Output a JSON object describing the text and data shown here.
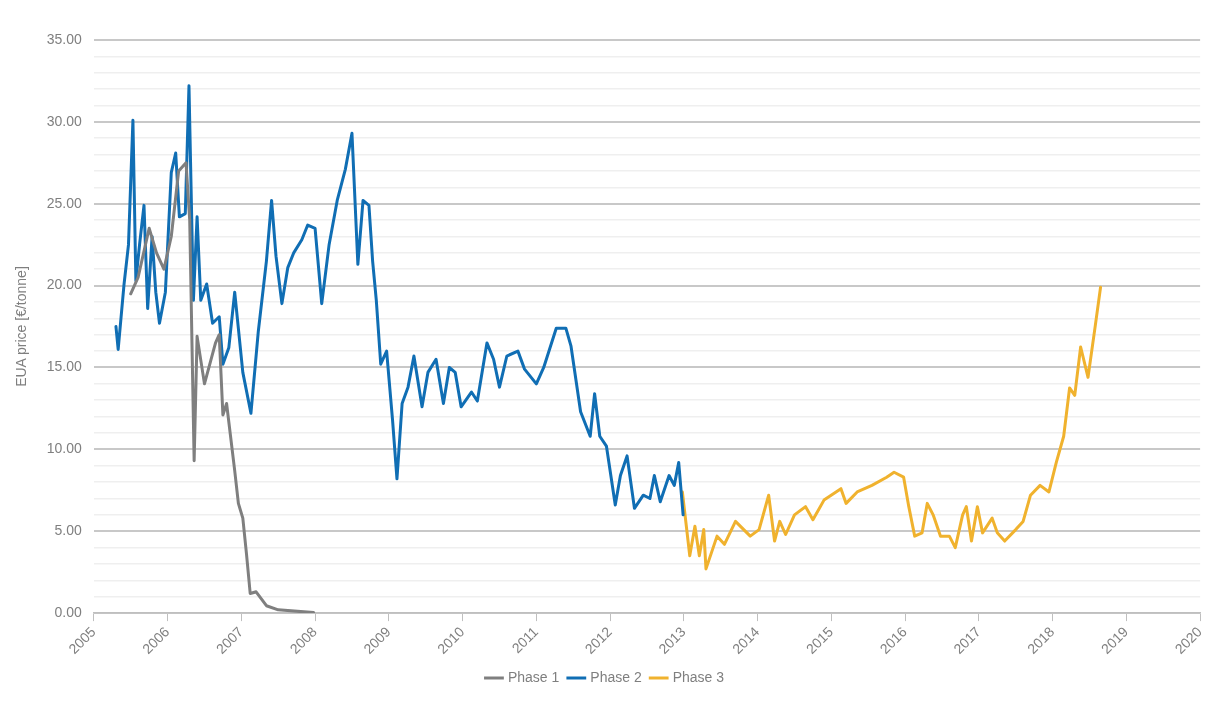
{
  "chart_data": {
    "type": "line",
    "ylabel": "EUA price [€/tonne]",
    "xlim": [
      2005,
      2020
    ],
    "xticks": [
      2005,
      2006,
      2007,
      2008,
      2009,
      2010,
      2011,
      2012,
      2013,
      2014,
      2015,
      2016,
      2017,
      2018,
      2019,
      2020
    ],
    "ylim": [
      0,
      35
    ],
    "yticks": [
      {
        "value": 0,
        "label": "0.00"
      },
      {
        "value": 1,
        "label": null
      },
      {
        "value": 2,
        "label": null
      },
      {
        "value": 3,
        "label": null
      },
      {
        "value": 4,
        "label": null
      },
      {
        "value": 5,
        "label": "5.00"
      },
      {
        "value": 6,
        "label": null
      },
      {
        "value": 7,
        "label": null
      },
      {
        "value": 8,
        "label": null
      },
      {
        "value": 9,
        "label": null
      },
      {
        "value": 10,
        "label": "10.00"
      },
      {
        "value": 11,
        "label": null
      },
      {
        "value": 12,
        "label": null
      },
      {
        "value": 13,
        "label": null
      },
      {
        "value": 14,
        "label": null
      },
      {
        "value": 15,
        "label": "15.00"
      },
      {
        "value": 16,
        "label": null
      },
      {
        "value": 17,
        "label": null
      },
      {
        "value": 18,
        "label": null
      },
      {
        "value": 19,
        "label": null
      },
      {
        "value": 20,
        "label": "20.00"
      },
      {
        "value": 21,
        "label": null
      },
      {
        "value": 22,
        "label": null
      },
      {
        "value": 23,
        "label": null
      },
      {
        "value": 24,
        "label": null
      },
      {
        "value": 25,
        "label": "25.00"
      },
      {
        "value": 26,
        "label": null
      },
      {
        "value": 27,
        "label": null
      },
      {
        "value": 28,
        "label": null
      },
      {
        "value": 29,
        "label": null
      },
      {
        "value": 30,
        "label": "30.00"
      },
      {
        "value": 31,
        "label": null
      },
      {
        "value": 32,
        "label": null
      },
      {
        "value": 33,
        "label": null
      },
      {
        "value": 34,
        "label": null
      },
      {
        "value": 35,
        "label": "35.00"
      }
    ],
    "grid": "y",
    "legend": "bottom",
    "marker": "none",
    "line_style": "solid",
    "series": [
      {
        "name": "Phase 1",
        "color": "#7f7f7f",
        "x": [
          2005.5,
          2005.6,
          2005.75,
          2005.85,
          2005.95,
          2006.05,
          2006.15,
          2006.25,
          2006.3,
          2006.36,
          2006.4,
          2006.5,
          2006.65,
          2006.7,
          2006.75,
          2006.8,
          2006.91,
          2006.96,
          2007.02,
          2007.07,
          2007.12,
          2007.2,
          2007.34,
          2007.5,
          2007.98
        ],
        "values": [
          19.5,
          20.5,
          23.5,
          22.0,
          21.0,
          23.0,
          27.0,
          27.5,
          24.0,
          9.3,
          16.9,
          14.0,
          16.5,
          17.0,
          12.1,
          12.8,
          8.7,
          6.7,
          5.8,
          3.6,
          1.2,
          1.3,
          0.45,
          0.2,
          0.03
        ]
      },
      {
        "name": "Phase 2",
        "color": "#106eb4",
        "x": [
          2005.3,
          2005.33,
          2005.41,
          2005.47,
          2005.53,
          2005.57,
          2005.62,
          2005.68,
          2005.73,
          2005.79,
          2005.84,
          2005.89,
          2005.97,
          2006.05,
          2006.11,
          2006.16,
          2006.24,
          2006.29,
          2006.35,
          2006.4,
          2006.45,
          2006.53,
          2006.61,
          2006.7,
          2006.75,
          2006.83,
          2006.91,
          2007.02,
          2007.13,
          2007.23,
          2007.34,
          2007.41,
          2007.47,
          2007.55,
          2007.63,
          2007.71,
          2007.82,
          2007.9,
          2008.0,
          2008.09,
          2008.19,
          2008.3,
          2008.41,
          2008.5,
          2008.58,
          2008.65,
          2008.73,
          2008.78,
          2008.83,
          2008.89,
          2008.97,
          2009.05,
          2009.11,
          2009.18,
          2009.26,
          2009.34,
          2009.45,
          2009.53,
          2009.64,
          2009.74,
          2009.82,
          2009.9,
          2009.98,
          2010.12,
          2010.2,
          2010.33,
          2010.42,
          2010.5,
          2010.6,
          2010.75,
          2010.84,
          2011.0,
          2011.1,
          2011.27,
          2011.4,
          2011.47,
          2011.6,
          2011.73,
          2011.79,
          2011.86,
          2011.95,
          2012.07,
          2012.14,
          2012.23,
          2012.33,
          2012.45,
          2012.54,
          2012.6,
          2012.68,
          2012.8,
          2012.87,
          2012.93,
          2012.99
        ],
        "values": [
          17.5,
          16.1,
          20.1,
          22.5,
          30.1,
          20.3,
          22.5,
          24.9,
          18.6,
          23.0,
          19.6,
          17.7,
          19.6,
          26.9,
          28.1,
          24.2,
          24.4,
          32.2,
          19.1,
          24.2,
          19.1,
          20.1,
          17.7,
          18.1,
          15.2,
          16.2,
          19.6,
          14.7,
          12.2,
          17.2,
          21.5,
          25.2,
          21.8,
          18.9,
          21.1,
          22.0,
          22.8,
          23.7,
          23.5,
          18.9,
          22.5,
          25.2,
          27.1,
          29.3,
          21.3,
          25.2,
          24.9,
          21.5,
          19.1,
          15.2,
          16.0,
          11.8,
          8.2,
          12.8,
          13.8,
          15.7,
          12.6,
          14.7,
          15.5,
          12.8,
          15.0,
          14.7,
          12.6,
          13.5,
          12.95,
          16.5,
          15.5,
          13.8,
          15.7,
          16.0,
          14.9,
          14.0,
          15.0,
          17.4,
          17.4,
          16.3,
          12.3,
          10.8,
          13.4,
          10.8,
          10.2,
          6.6,
          8.4,
          9.6,
          6.4,
          7.2,
          7.0,
          8.4,
          6.8,
          8.4,
          7.8,
          9.2,
          6.0
        ]
      },
      {
        "name": "Phase 3",
        "color": "#f0b22e",
        "x": [
          2012.98,
          2013.08,
          2013.15,
          2013.21,
          2013.27,
          2013.3,
          2013.45,
          2013.55,
          2013.7,
          2013.9,
          2014.02,
          2014.15,
          2014.23,
          2014.3,
          2014.38,
          2014.5,
          2014.65,
          2014.75,
          2014.9,
          2015.13,
          2015.2,
          2015.35,
          2015.55,
          2015.75,
          2015.85,
          2015.98,
          2016.05,
          2016.13,
          2016.23,
          2016.3,
          2016.38,
          2016.48,
          2016.6,
          2016.68,
          2016.78,
          2016.83,
          2016.9,
          2016.98,
          2017.05,
          2017.18,
          2017.25,
          2017.35,
          2017.5,
          2017.6,
          2017.7,
          2017.83,
          2017.95,
          2018.05,
          2018.15,
          2018.23,
          2018.3,
          2018.38,
          2018.48,
          2018.58,
          2018.65
        ],
        "values": [
          7.4,
          3.5,
          5.3,
          3.5,
          5.1,
          2.7,
          4.7,
          4.2,
          5.6,
          4.7,
          5.1,
          7.2,
          4.4,
          5.6,
          4.8,
          6.0,
          6.5,
          5.7,
          6.9,
          7.6,
          6.7,
          7.4,
          7.8,
          8.3,
          8.6,
          8.3,
          6.5,
          4.7,
          4.9,
          6.7,
          6.0,
          4.7,
          4.7,
          4.0,
          6.0,
          6.5,
          4.4,
          6.5,
          4.9,
          5.8,
          4.9,
          4.4,
          5.1,
          5.6,
          7.2,
          7.8,
          7.4,
          9.2,
          10.8,
          13.75,
          13.3,
          16.25,
          14.4,
          17.6,
          19.9
        ]
      }
    ]
  }
}
